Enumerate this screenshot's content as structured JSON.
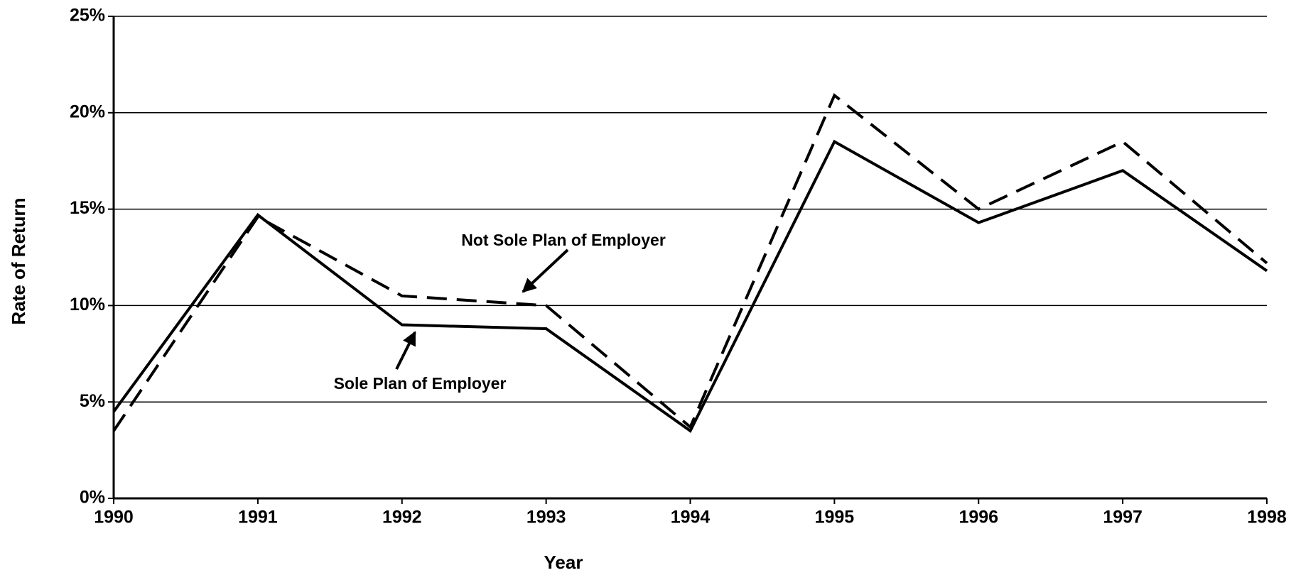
{
  "chart_data": {
    "type": "line",
    "x": [
      1990,
      1991,
      1992,
      1993,
      1994,
      1995,
      1996,
      1997,
      1998
    ],
    "xlim": [
      1990,
      1998
    ],
    "xticks": [
      1990,
      1991,
      1992,
      1993,
      1994,
      1995,
      1996,
      1997,
      1998
    ],
    "ylim": [
      0,
      25
    ],
    "yticks": [
      {
        "value": 0,
        "label": "0%"
      },
      {
        "value": 5,
        "label": "5%"
      },
      {
        "value": 10,
        "label": "10%"
      },
      {
        "value": 15,
        "label": "15%"
      },
      {
        "value": 20,
        "label": "20%"
      },
      {
        "value": 25,
        "label": "25%"
      }
    ],
    "xlabel": "Year",
    "ylabel": "Rate of Return",
    "grid": true,
    "series": [
      {
        "name": "Sole Plan of Employer",
        "color": "#000000",
        "dash": "solid",
        "values": [
          4.5,
          14.7,
          9.0,
          8.8,
          3.5,
          18.5,
          14.3,
          17.0,
          11.8
        ]
      },
      {
        "name": "Not Sole Plan of Employer",
        "color": "#000000",
        "dash": "dashed",
        "values": [
          3.5,
          14.6,
          10.5,
          10.0,
          3.7,
          20.9,
          15.0,
          18.5,
          12.2
        ]
      }
    ],
    "annotations": [
      {
        "text": "Not Sole Plan of Employer"
      },
      {
        "text": "Sole Plan of Employer"
      }
    ]
  }
}
